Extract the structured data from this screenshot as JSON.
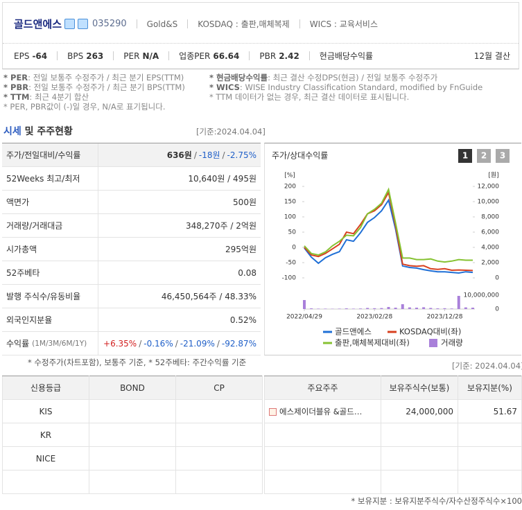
{
  "header": {
    "name": "골드앤에스",
    "code": "035290",
    "english_name": "Gold&S",
    "market": "KOSDAQ : 출판,매체복제",
    "wics": "WICS : 교육서비스",
    "metrics": [
      {
        "label": "EPS",
        "value": -64
      },
      {
        "label": "BPS",
        "value": 263
      },
      {
        "label": "PER",
        "value": "N/A"
      },
      {
        "label": "업종PER",
        "value": 66.64
      },
      {
        "label": "PBR",
        "value": 2.42
      },
      {
        "label": "현금배당수익률"
      }
    ],
    "fiscal": "12월 결산"
  },
  "notes_left": [
    {
      "term": "* PER",
      "text": ": 전일 보통주 수정주가 / 최근 분기 EPS(TTM)"
    },
    {
      "term": "* PBR",
      "text": ": 전일 보통주 수정주가 / 최근 분기 BPS(TTM)"
    },
    {
      "term": "* TTM",
      "text": ": 최근 4분기 합산"
    },
    {
      "term": "",
      "text": "* PER, PBR값이 (-)일 경우, N/A로 표기됩니다."
    }
  ],
  "notes_right": [
    {
      "term": "* 현금배당수익률",
      "text": ": 최근 결산 수정DPS(현금) / 전일 보통주 수정주가"
    },
    {
      "term": "* WICS",
      "text": ": WISE Industry Classification Standard, modified by FnGuide"
    },
    {
      "term": "",
      "text": "* TTM 데이터가 없는 경우, 최근 결산 데이터로 표시됩니다."
    }
  ],
  "section": {
    "title_accent": "시세",
    "title_rest": " 및 주주현황",
    "date": "[기준:2024.04.04]"
  },
  "market_table": [
    {
      "label": "주가/전일대비/수익률",
      "parts": [
        "636원",
        "/",
        "-18원",
        "/",
        "-2.75%"
      ]
    },
    {
      "label": "52Weeks 최고/최저",
      "parts": [
        "10,640원 / 495원"
      ]
    },
    {
      "label": "액면가",
      "parts": [
        "500원"
      ]
    },
    {
      "label": "거래량/거래대금",
      "parts": [
        "348,270주 / 2억원"
      ]
    },
    {
      "label": "시가총액",
      "parts": [
        "295억원"
      ]
    },
    {
      "label": "52주베타",
      "parts": [
        "0.08"
      ]
    },
    {
      "label": "발행 주식수/유동비율",
      "parts": [
        "46,450,564주 / 48.33%"
      ]
    },
    {
      "label": "외국인지분율",
      "parts": [
        "0.52%"
      ]
    },
    {
      "label": "수익률",
      "sublabel": "(1M/3M/6M/1Y)",
      "parts": [
        "+6.35%",
        "/",
        "-0.16%",
        "/",
        "-21.09%",
        "/",
        "-92.87%"
      ]
    }
  ],
  "table_note": "* 수정주가(차트포함), 보통주 기준, * 52주베타: 주간수익률 기준",
  "chart_title": "주가/상대수익률",
  "chart_buttons": [
    "1",
    "2",
    "3"
  ],
  "chart_data": {
    "type": "line",
    "categories": [
      "2022/04/29",
      null,
      null,
      null,
      null,
      null,
      null,
      null,
      null,
      null,
      "2023/02/28",
      null,
      null,
      null,
      null,
      null,
      null,
      null,
      null,
      null,
      "2023/12/28",
      null,
      null,
      null,
      null
    ],
    "ylabel": "[%]",
    "ylim": [
      -100,
      200
    ],
    "yticks": [
      200,
      150,
      100,
      50,
      0,
      -50,
      -100
    ],
    "y2label": "[원]",
    "y2lim": [
      0,
      12000
    ],
    "y2ticks": [
      {
        "value": 12000,
        "label": "12,000"
      },
      {
        "value": 10000,
        "label": "10,000"
      },
      {
        "value": 8000,
        "label": "8,000"
      },
      {
        "value": 6000,
        "label": "6,000"
      },
      {
        "value": 4000,
        "label": "4,000"
      },
      {
        "value": 2000,
        "label": "2,000"
      },
      0
    ],
    "y3lim": [
      0,
      10000000
    ],
    "y3ticks": [
      {
        "value": 10000000,
        "label": "10,000,000"
      },
      0
    ],
    "grid": false,
    "series": [
      {
        "name": "골드앤에스",
        "color": "#1f6fd6",
        "values": [
          -2,
          -32,
          -52,
          -34,
          -23,
          -14,
          25,
          20,
          48,
          82,
          98,
          120,
          155,
          60,
          -61,
          -66,
          -68,
          -73,
          -77,
          -80,
          -80,
          -82,
          -84,
          -80,
          -82
        ]
      },
      {
        "name": "KOSDAQ대비(좌)",
        "color": "#d8401f",
        "values": [
          0,
          -25,
          -30,
          -20,
          -5,
          10,
          50,
          45,
          75,
          110,
          120,
          140,
          180,
          70,
          -55,
          -60,
          -62,
          -60,
          -70,
          -72,
          -70,
          -75,
          -74,
          -75,
          -76
        ]
      },
      {
        "name": "출판,매체복제대비(좌)",
        "color": "#86c232",
        "values": [
          5,
          -20,
          -25,
          -15,
          5,
          20,
          40,
          38,
          65,
          110,
          125,
          145,
          190,
          80,
          -35,
          -35,
          -40,
          -40,
          -38,
          -45,
          -48,
          -45,
          -40,
          -42,
          -42
        ]
      },
      {
        "name": "거래량",
        "color": "#a980da",
        "type": "bar",
        "axis": "y3",
        "values": [
          6500000,
          500000,
          300000,
          300000,
          200000,
          300000,
          500000,
          300000,
          400000,
          800000,
          600000,
          700000,
          1500000,
          1000000,
          3500000,
          1200000,
          1000000,
          1300000,
          800000,
          500000,
          600000,
          400000,
          9500000,
          1200000,
          1000000
        ]
      }
    ]
  },
  "lower_date": "[기준: 2024.04.04]",
  "credit": {
    "headers": [
      "신용등급",
      "BOND",
      "CP"
    ],
    "agencies": [
      "KIS",
      "KR",
      "NICE"
    ]
  },
  "shareholders": {
    "headers": [
      "주요주주",
      "보유주식수(보통)",
      "보유지분(%)"
    ],
    "rows": [
      {
        "name": "에스제이더블유 &골드…",
        "shares": "24,000,000",
        "stake": 51.67
      }
    ]
  },
  "footnote": "* 보유지분 : 보유지분주식수/자수산정주식수×100"
}
